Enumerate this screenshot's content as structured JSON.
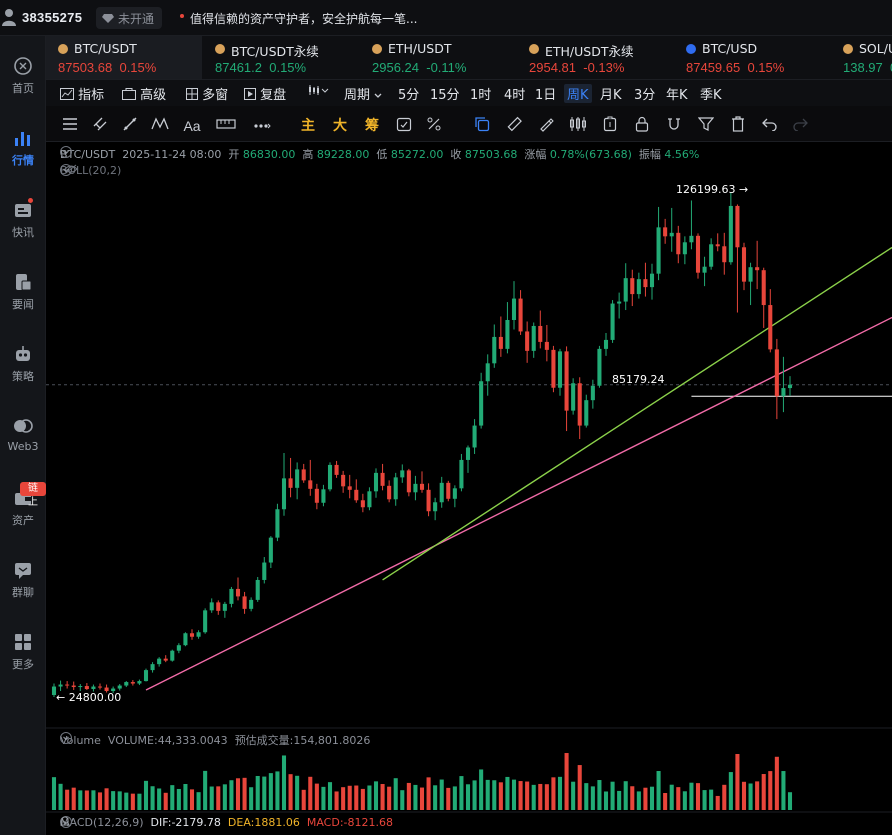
{
  "topbar": {
    "user_id": "38355275",
    "status": "未开通",
    "notice": "值得信赖的资产守护者，安全护航每一笔..."
  },
  "nav": {
    "items": [
      {
        "label": "首页",
        "icon": "home-icon"
      },
      {
        "label": "行情",
        "icon": "market-chart-icon",
        "active": true
      },
      {
        "label": "快讯",
        "icon": "flash-news-icon",
        "dot": true
      },
      {
        "label": "要闻",
        "icon": "news-icon"
      },
      {
        "label": "策略",
        "icon": "robot-icon"
      },
      {
        "label": "Web3",
        "icon": "web3-icon"
      },
      {
        "label": "资产",
        "icon": "wallet-icon",
        "badge": "链上"
      },
      {
        "label": "群聊",
        "icon": "chat-icon"
      },
      {
        "label": "更多",
        "icon": "more-grid-icon"
      }
    ]
  },
  "tabs": [
    {
      "pair": "BTC/USDT",
      "price": "87503.68",
      "change": "0.15%",
      "dir": "down",
      "active": true
    },
    {
      "pair": "BTC/USDT永续",
      "price": "87461.2",
      "change": "0.15%",
      "dir": "up"
    },
    {
      "pair": "ETH/USDT",
      "price": "2956.24",
      "change": "-0.11%",
      "dir": "up"
    },
    {
      "pair": "ETH/USDT永续",
      "price": "2954.81",
      "change": "-0.13%",
      "dir": "down"
    },
    {
      "pair": "BTC/USD",
      "price": "87459.65",
      "change": "0.15%",
      "dir": "down"
    },
    {
      "pair": "SOL/U",
      "price": "138.97",
      "change": "0",
      "dir": "up"
    }
  ],
  "toolbar": {
    "indicator": "指标",
    "advanced": "高级",
    "multi_window": "多窗",
    "replay": "复盘",
    "period": "周期",
    "intervals": [
      "5分",
      "15分",
      "1时",
      "4时",
      "1日",
      "周K",
      "月K",
      "3分",
      "年K",
      "季K"
    ],
    "active_interval": "周K",
    "tool_labels": {
      "main": "主",
      "big": "大",
      "chip": "筹"
    }
  },
  "chart_header": {
    "pair": "BTC/USDT",
    "date": "2025-11-24 08:00",
    "open_label": "开",
    "open": "86830.00",
    "high_label": "高",
    "high": "89228.00",
    "low_label": "低",
    "low": "85272.00",
    "close_label": "收",
    "close": "87503.68",
    "change_label": "涨幅",
    "change": "0.78%(673.68)",
    "amplitude_label": "振幅",
    "amplitude": "4.56%",
    "boll": "BOLL(20,2)"
  },
  "chart_labels": {
    "high_marker": "126199.63",
    "level_marker": "85179.24",
    "low_marker": "24800.00"
  },
  "volume_header": {
    "name": "Volume",
    "volume_label": "VOLUME:",
    "volume": "44,333.0043",
    "estimate_label": "预估成交量:",
    "estimate": "154,801.8026"
  },
  "macd_header": {
    "name": "MACD(12,26,9)",
    "dif": "DIF:-2179.78",
    "dea": "DEA:1881.06",
    "macd": "MACD:-8121.68"
  },
  "chart_data": {
    "type": "candlestick",
    "series_name": "BTC/USDT weekly",
    "price_range": [
      24800.0,
      126199.63
    ],
    "candles": [
      [
        25200,
        27500,
        24800,
        26900
      ],
      [
        26900,
        28100,
        26000,
        27300
      ],
      [
        27300,
        28000,
        26500,
        27100
      ],
      [
        27100,
        27900,
        26200,
        26800
      ],
      [
        26800,
        27400,
        26000,
        27000
      ],
      [
        27000,
        27600,
        26200,
        26400
      ],
      [
        26400,
        27300,
        25900,
        26900
      ],
      [
        26900,
        27500,
        26300,
        26700
      ],
      [
        26700,
        27300,
        25700,
        26000
      ],
      [
        26000,
        26900,
        25600,
        26500
      ],
      [
        26500,
        27400,
        26100,
        27100
      ],
      [
        27100,
        28000,
        26800,
        27800
      ],
      [
        27800,
        28200,
        27100,
        27500
      ],
      [
        27500,
        28300,
        27200,
        28000
      ],
      [
        28000,
        30500,
        27900,
        30200
      ],
      [
        30200,
        31800,
        29700,
        31400
      ],
      [
        31400,
        32800,
        30900,
        32500
      ],
      [
        32500,
        33200,
        31800,
        32100
      ],
      [
        32100,
        34300,
        31900,
        34100
      ],
      [
        34100,
        35600,
        33600,
        35200
      ],
      [
        35200,
        37800,
        35000,
        37600
      ],
      [
        37600,
        38400,
        36300,
        36900
      ],
      [
        36900,
        38200,
        36500,
        37800
      ],
      [
        37800,
        42600,
        37500,
        42200
      ],
      [
        42200,
        44600,
        41700,
        43800
      ],
      [
        43800,
        44200,
        41300,
        42100
      ],
      [
        42100,
        43900,
        40700,
        43500
      ],
      [
        43500,
        46900,
        42800,
        46500
      ],
      [
        46500,
        48800,
        44200,
        45000
      ],
      [
        45000,
        45900,
        41500,
        42500
      ],
      [
        42500,
        44800,
        42000,
        44300
      ],
      [
        44300,
        48900,
        43900,
        48300
      ],
      [
        48300,
        52900,
        47600,
        51800
      ],
      [
        51800,
        57100,
        50700,
        56800
      ],
      [
        56800,
        63600,
        56100,
        62500
      ],
      [
        62500,
        73800,
        61200,
        68700
      ],
      [
        68700,
        72800,
        64900,
        66800
      ],
      [
        66800,
        71900,
        64500,
        70500
      ],
      [
        70500,
        71600,
        67800,
        68300
      ],
      [
        68300,
        72400,
        65200,
        66600
      ],
      [
        66600,
        67600,
        62500,
        63800
      ],
      [
        63800,
        67400,
        63100,
        66500
      ],
      [
        66500,
        71900,
        66100,
        71400
      ],
      [
        71400,
        72200,
        68800,
        69400
      ],
      [
        69400,
        70200,
        65800,
        67100
      ],
      [
        67100,
        69400,
        64700,
        66400
      ],
      [
        66400,
        68500,
        63800,
        64300
      ],
      [
        64300,
        65600,
        61900,
        62900
      ],
      [
        62900,
        66900,
        62300,
        66100
      ],
      [
        66100,
        70700,
        64800,
        69800
      ],
      [
        69800,
        71600,
        66300,
        67200
      ],
      [
        67200,
        68300,
        63900,
        64500
      ],
      [
        64500,
        69800,
        63200,
        68900
      ],
      [
        68900,
        71500,
        67800,
        70300
      ],
      [
        70300,
        70600,
        65100,
        65900
      ],
      [
        65900,
        69200,
        64300,
        67600
      ],
      [
        67600,
        70100,
        65800,
        66400
      ],
      [
        66400,
        67700,
        61100,
        62100
      ],
      [
        62100,
        64800,
        60300,
        63900
      ],
      [
        63900,
        69000,
        62800,
        67800
      ],
      [
        67800,
        68200,
        64100,
        64600
      ],
      [
        64600,
        67300,
        62900,
        66700
      ],
      [
        66700,
        73600,
        66100,
        72400
      ],
      [
        72400,
        75300,
        69800,
        74900
      ],
      [
        74900,
        80600,
        73600,
        79300
      ],
      [
        79300,
        89900,
        78700,
        88200
      ],
      [
        88200,
        93600,
        85300,
        91800
      ],
      [
        91800,
        99600,
        90900,
        97100
      ],
      [
        97100,
        101200,
        93100,
        94700
      ],
      [
        94700,
        104100,
        93800,
        100500
      ],
      [
        100500,
        108300,
        98600,
        104800
      ],
      [
        104800,
        106500,
        97500,
        98200
      ],
      [
        98200,
        100200,
        91900,
        94300
      ],
      [
        94300,
        100000,
        92900,
        99300
      ],
      [
        99300,
        102400,
        94800,
        96100
      ],
      [
        96100,
        99500,
        92200,
        94500
      ],
      [
        94500,
        95300,
        86000,
        86900
      ],
      [
        86900,
        94700,
        85300,
        94200
      ],
      [
        94200,
        95200,
        78200,
        82300
      ],
      [
        82300,
        88800,
        81500,
        87800
      ],
      [
        87800,
        89000,
        76600,
        79300
      ],
      [
        79300,
        85500,
        78900,
        84400
      ],
      [
        84400,
        88500,
        82700,
        87300
      ],
      [
        87300,
        95300,
        86900,
        94700
      ],
      [
        94700,
        97900,
        93300,
        96500
      ],
      [
        96500,
        104500,
        95900,
        103800
      ],
      [
        103800,
        106000,
        100800,
        104200
      ],
      [
        104200,
        111900,
        102500,
        108900
      ],
      [
        108900,
        110600,
        103300,
        105700
      ],
      [
        105700,
        110000,
        104800,
        108700
      ],
      [
        108700,
        112000,
        105200,
        107100
      ],
      [
        107100,
        111800,
        104600,
        109800
      ],
      [
        109800,
        123200,
        108500,
        119100
      ],
      [
        119100,
        120800,
        115800,
        117300
      ],
      [
        117300,
        123000,
        114200,
        118000
      ],
      [
        118000,
        119400,
        111900,
        113700
      ],
      [
        113700,
        117300,
        111700,
        116100
      ],
      [
        116100,
        124500,
        114700,
        117400
      ],
      [
        117400,
        117900,
        108800,
        110000
      ],
      [
        110000,
        113200,
        107300,
        111200
      ],
      [
        111200,
        116900,
        110600,
        115700
      ],
      [
        115700,
        117900,
        114300,
        115300
      ],
      [
        115300,
        118000,
        109600,
        112100
      ],
      [
        112100,
        126199.63,
        111600,
        123400
      ],
      [
        123400,
        123700,
        102000,
        115100
      ],
      [
        115100,
        116000,
        106500,
        108200
      ],
      [
        108200,
        112000,
        103500,
        111100
      ],
      [
        111100,
        116400,
        106700,
        110500
      ],
      [
        110500,
        111000,
        98900,
        103500
      ],
      [
        103500,
        106700,
        94000,
        94600
      ],
      [
        94600,
        96700,
        80600,
        85200
      ],
      [
        85200,
        93100,
        82000,
        86830
      ],
      [
        86830,
        89228,
        85272,
        87503.68
      ]
    ],
    "horizontal_level": 85179.24,
    "trendlines": [
      {
        "name": "pink",
        "points": [
          [
            14,
            26200
          ],
          [
            104,
            85500
          ]
        ]
      },
      {
        "name": "green",
        "points": [
          [
            50,
            48300
          ],
          [
            104,
            94800
          ]
        ]
      }
    ]
  }
}
